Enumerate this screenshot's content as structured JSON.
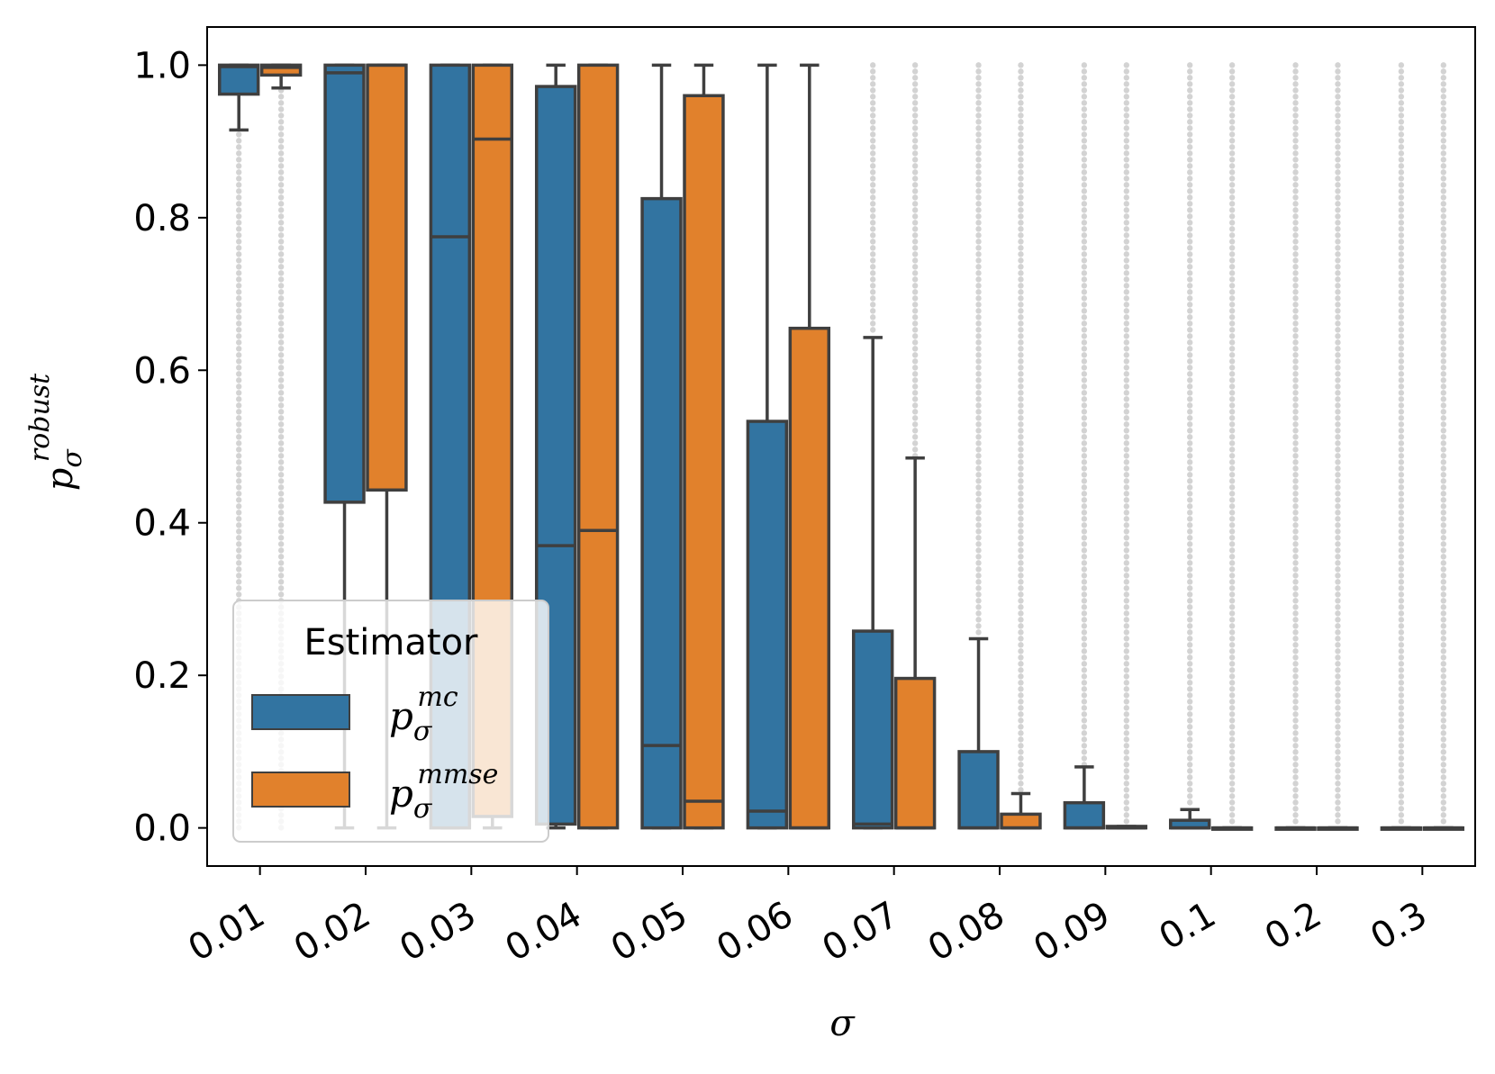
{
  "chart_data": {
    "type": "boxplot",
    "ylabel_base": "p",
    "ylabel_sub": "σ",
    "ylabel_sup": "robust",
    "xlabel": "σ",
    "ylim": [
      -0.05,
      1.05
    ],
    "yticks": [
      "0.0",
      "0.2",
      "0.4",
      "0.6",
      "0.8",
      "1.0"
    ],
    "categories": [
      "0.01",
      "0.02",
      "0.03",
      "0.04",
      "0.05",
      "0.06",
      "0.07",
      "0.08",
      "0.09",
      "0.1",
      "0.2",
      "0.3"
    ],
    "legend": {
      "title": "Estimator",
      "position": "lower-left"
    },
    "series": [
      {
        "name": "p_σ^mc",
        "label_base": "p",
        "label_sub": "σ",
        "label_sup": "mc",
        "color": "#3274a1",
        "boxes": [
          {
            "whislo": 0.915,
            "q1": 0.962,
            "med": 0.998,
            "q3": 1.0,
            "whishi": 1.0
          },
          {
            "whislo": 0.0,
            "q1": 0.427,
            "med": 0.99,
            "q3": 1.0,
            "whishi": 1.0
          },
          {
            "whislo": 0.0,
            "q1": 0.0,
            "med": 0.775,
            "q3": 1.0,
            "whishi": 1.0
          },
          {
            "whislo": 0.0,
            "q1": 0.005,
            "med": 0.37,
            "q3": 0.972,
            "whishi": 1.0
          },
          {
            "whislo": 0.0,
            "q1": 0.0,
            "med": 0.108,
            "q3": 0.825,
            "whishi": 1.0
          },
          {
            "whislo": 0.0,
            "q1": 0.0,
            "med": 0.022,
            "q3": 0.533,
            "whishi": 1.0
          },
          {
            "whislo": 0.0,
            "q1": 0.0,
            "med": 0.005,
            "q3": 0.258,
            "whishi": 0.643
          },
          {
            "whislo": 0.0,
            "q1": 0.0,
            "med": 0.0,
            "q3": 0.1,
            "whishi": 0.248
          },
          {
            "whislo": 0.0,
            "q1": 0.0,
            "med": 0.0,
            "q3": 0.033,
            "whishi": 0.08
          },
          {
            "whislo": 0.0,
            "q1": 0.0,
            "med": 0.0,
            "q3": 0.01,
            "whishi": 0.024
          },
          {
            "whislo": 0.0,
            "q1": 0.0,
            "med": 0.0,
            "q3": 0.0,
            "whishi": 0.0
          },
          {
            "whislo": 0.0,
            "q1": 0.0,
            "med": 0.0,
            "q3": 0.0,
            "whishi": 0.0
          }
        ]
      },
      {
        "name": "p_σ^mmse",
        "label_base": "p",
        "label_sub": "σ",
        "label_sup": "mmse",
        "color": "#e1812c",
        "boxes": [
          {
            "whislo": 0.97,
            "q1": 0.987,
            "med": 0.997,
            "q3": 1.0,
            "whishi": 1.0
          },
          {
            "whislo": 0.0,
            "q1": 0.443,
            "med": 1.0,
            "q3": 1.0,
            "whishi": 1.0
          },
          {
            "whislo": 0.0,
            "q1": 0.015,
            "med": 0.903,
            "q3": 1.0,
            "whishi": 1.0
          },
          {
            "whislo": 0.0,
            "q1": 0.0,
            "med": 0.39,
            "q3": 1.0,
            "whishi": 1.0
          },
          {
            "whislo": 0.0,
            "q1": 0.0,
            "med": 0.035,
            "q3": 0.96,
            "whishi": 1.0
          },
          {
            "whislo": 0.0,
            "q1": 0.0,
            "med": 0.0,
            "q3": 0.655,
            "whishi": 1.0
          },
          {
            "whislo": 0.0,
            "q1": 0.0,
            "med": 0.0,
            "q3": 0.196,
            "whishi": 0.485
          },
          {
            "whislo": 0.0,
            "q1": 0.0,
            "med": 0.0,
            "q3": 0.018,
            "whishi": 0.045
          },
          {
            "whislo": 0.0,
            "q1": 0.0,
            "med": 0.0,
            "q3": 0.002,
            "whishi": 0.002
          },
          {
            "whislo": 0.0,
            "q1": 0.0,
            "med": 0.0,
            "q3": 0.0,
            "whishi": 0.0
          },
          {
            "whislo": 0.0,
            "q1": 0.0,
            "med": 0.0,
            "q3": 0.0,
            "whishi": 0.0
          },
          {
            "whislo": 0.0,
            "q1": 0.0,
            "med": 0.0,
            "q3": 0.0,
            "whishi": 0.0
          }
        ]
      }
    ],
    "outliers_color": "#d3d3d3",
    "line_color": "#3f3f3f"
  }
}
